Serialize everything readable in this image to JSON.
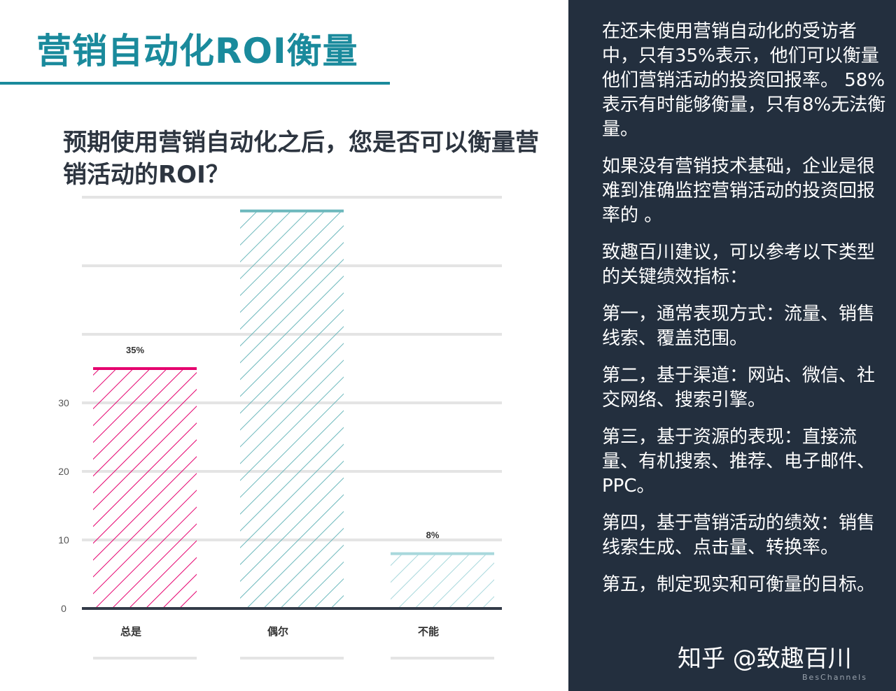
{
  "title": "营销自动化ROI衡量",
  "right_panel": {
    "paragraphs": [
      "在还未使用营销自动化的受访者中，只有35%表示，他们可以衡量他们营销活动的投资回报率。 58%表示有时能够衡量，只有8%无法衡量。",
      "如果没有营销技术基础，企业是很难到准确监控营销活动的投资回报率的 。",
      "致趣百川建议，可以参考以下类型的关键绩效指标：",
      "第一，通常表现方式：流量、销售线索、覆盖范围。",
      "第二，基于渠道：网站、微信、社交网络、搜索引擎。",
      "第三，基于资源的表现：直接流量、有机搜索、推荐、电子邮件、PPC。",
      "第四，基于营销活动的绩效：销售线索生成、点击量、转换率。",
      "第五，制定现实和可衡量的目标。"
    ],
    "watermark": "知乎 @致趣百川",
    "brand_sub": "BesChannels"
  },
  "chart_data": {
    "type": "bar",
    "title": "预期使用营销自动化之后，您是否可以衡量营销活动的ROI？",
    "categories": [
      "总是",
      "偶尔",
      "不能"
    ],
    "values": [
      35,
      58,
      8
    ],
    "data_labels": [
      "35%",
      "",
      "8%"
    ],
    "colors": [
      "#e5006e",
      "#6cb8bc",
      "#a8d8dc"
    ],
    "ylim": [
      0,
      60
    ],
    "yticks": [
      0,
      10,
      20,
      30
    ],
    "grid": true,
    "fill": "diagonal-hatch"
  }
}
